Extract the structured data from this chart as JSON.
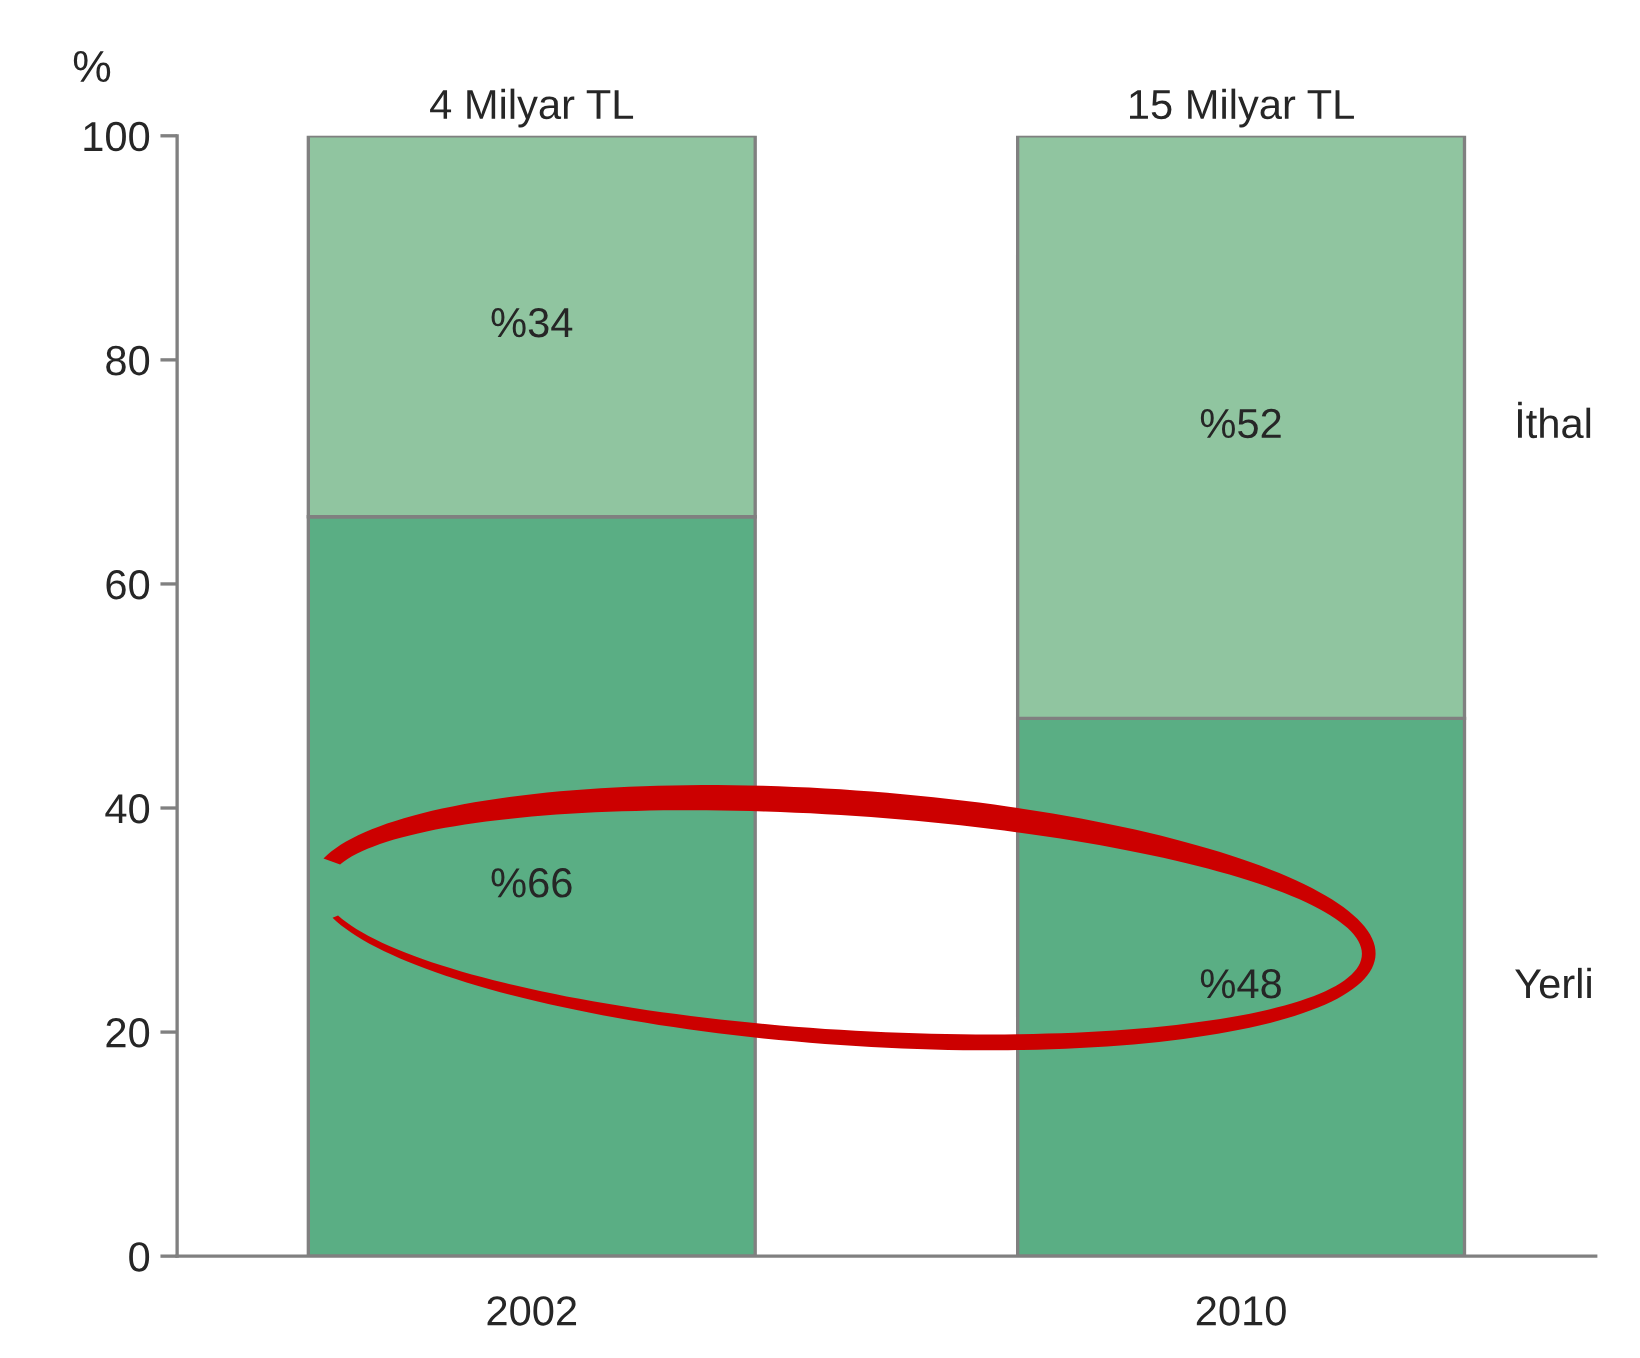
{
  "chart_data": {
    "type": "bar",
    "stacked": true,
    "ylabel": "%",
    "categories": [
      "2002",
      "2010"
    ],
    "series": [
      {
        "name": "Yerli",
        "color": "#5aae84",
        "values": [
          66,
          48
        ],
        "value_labels": [
          "%66",
          "%48"
        ]
      },
      {
        "name": "İthal",
        "color": "#90c5a0",
        "values": [
          34,
          52
        ],
        "value_labels": [
          "%34",
          "%52"
        ]
      }
    ],
    "annotations": [
      {
        "text": "4 Milyar TL",
        "x": "2002",
        "y": 100
      },
      {
        "text": "15 Milyar TL",
        "x": "2010",
        "y": 100
      }
    ],
    "ylim": [
      0,
      100
    ],
    "yticks": [
      0,
      20,
      40,
      60,
      80,
      100
    ],
    "grid": false,
    "legend": false
  }
}
